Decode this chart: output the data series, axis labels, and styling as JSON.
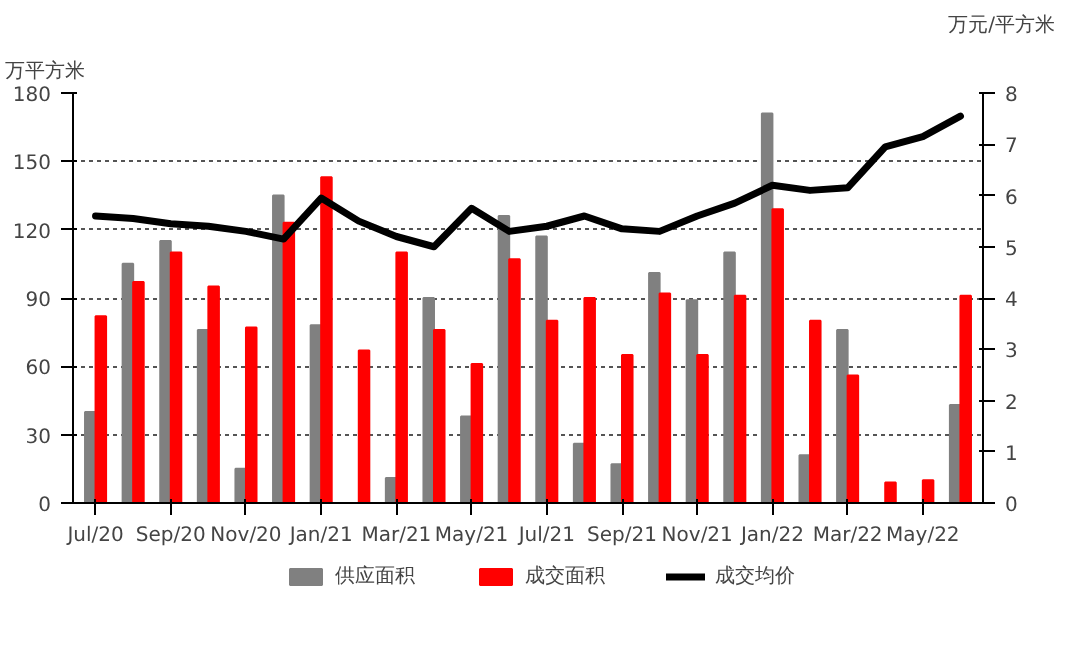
{
  "chart_data": {
    "type": "bar",
    "ylabel": "万平方米",
    "y2label": "万元/平方米",
    "categories": [
      "Jul/20",
      null,
      "Sep/20",
      null,
      "Nov/20",
      null,
      "Jan/21",
      null,
      "Mar/21",
      null,
      "May/21",
      null,
      "Jul/21",
      null,
      "Sep/21",
      null,
      "Nov/21",
      null,
      "Jan/22",
      null,
      "Mar/22",
      null,
      "May/22",
      null
    ],
    "series": [
      {
        "name": "供应面积",
        "color": "#808080",
        "values": [
          40,
          105,
          115,
          76,
          15,
          135,
          78,
          0,
          11,
          90,
          38,
          126,
          117,
          26,
          17,
          101,
          89,
          110,
          171,
          21,
          76,
          0,
          0,
          43
        ]
      },
      {
        "name": "成交面积",
        "color": "#ff0000",
        "values": [
          82,
          97,
          110,
          95,
          77,
          123,
          143,
          67,
          110,
          76,
          61,
          107,
          80,
          90,
          65,
          92,
          65,
          91,
          129,
          80,
          56,
          9,
          10,
          91
        ]
      },
      {
        "name": "成交均价",
        "color": "#000000",
        "type": "line",
        "axis": "y2",
        "values": [
          5.6,
          5.55,
          5.45,
          5.4,
          5.3,
          5.15,
          5.95,
          5.5,
          5.2,
          5.0,
          5.75,
          5.3,
          5.4,
          5.6,
          5.35,
          5.3,
          5.6,
          5.85,
          6.2,
          6.1,
          6.15,
          6.95,
          7.15,
          7.55
        ]
      }
    ],
    "ylim": [
      0,
      180
    ],
    "yticks": [
      0,
      30,
      60,
      90,
      120,
      150,
      180
    ],
    "y2lim": [
      0,
      8
    ],
    "y2ticks": [
      0,
      1,
      2,
      3,
      4,
      5,
      6,
      7,
      8
    ],
    "grid": "y",
    "legend": "bottom"
  }
}
